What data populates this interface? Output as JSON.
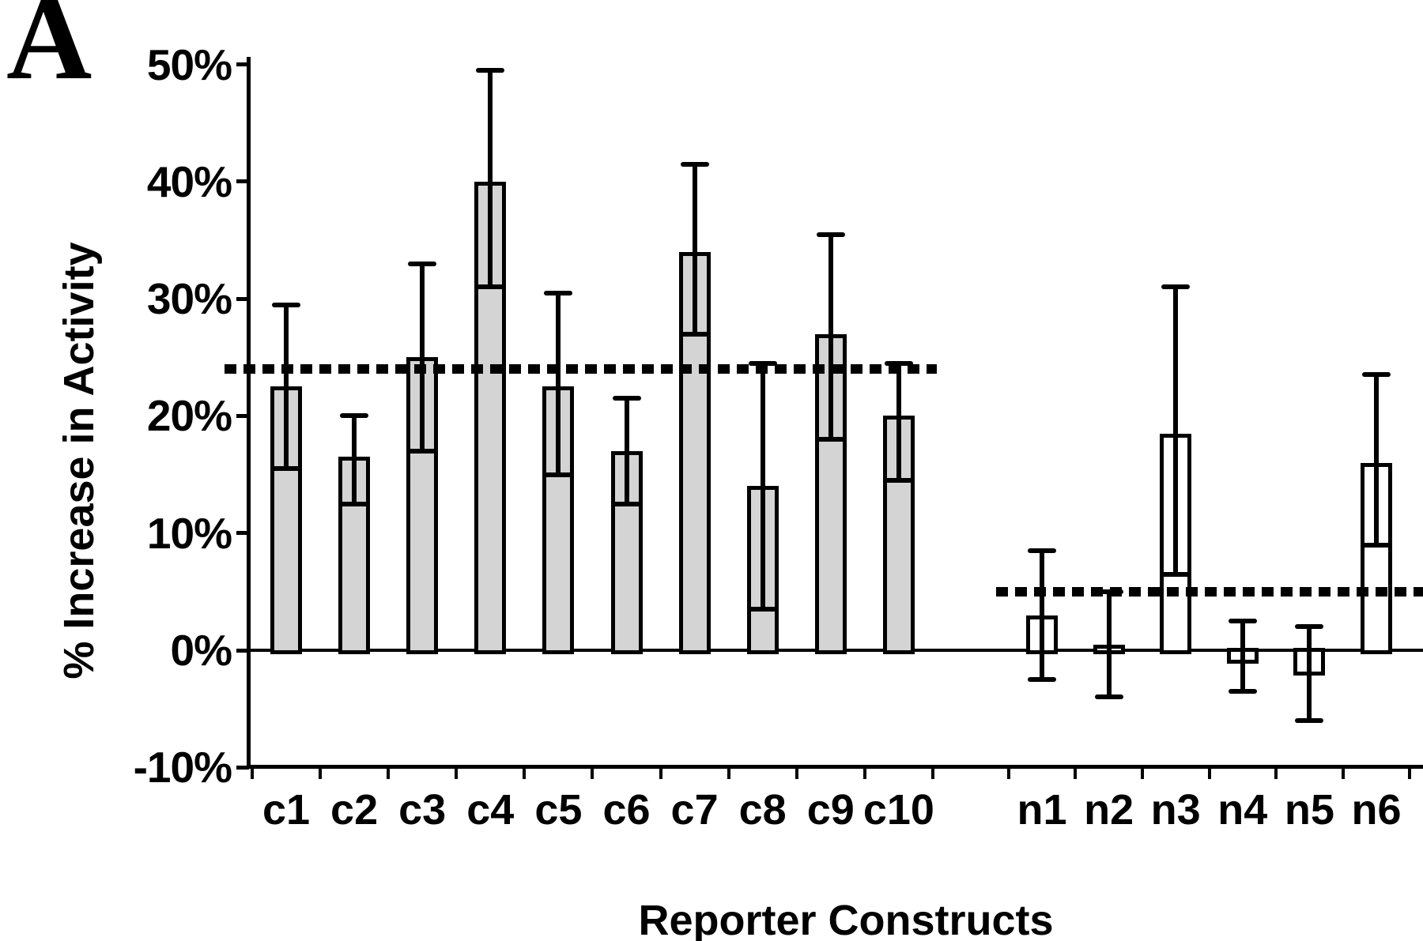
{
  "panel_label": "A",
  "y_axis": {
    "title": "% Increase in Activity",
    "ticks": [
      {
        "value": 50,
        "label": "50%"
      },
      {
        "value": 40,
        "label": "40%"
      },
      {
        "value": 30,
        "label": "30%"
      },
      {
        "value": 20,
        "label": "20%"
      },
      {
        "value": 10,
        "label": "10%"
      },
      {
        "value": 0,
        "label": "0%"
      },
      {
        "value": -10,
        "label": "-10%"
      }
    ]
  },
  "x_axis": {
    "title": "Reporter Constructs"
  },
  "chart_data": {
    "type": "bar",
    "title": "",
    "xlabel": "Reporter Constructs",
    "ylabel": "% Increase in Activity",
    "ylim": [
      -10,
      50
    ],
    "y_tick_step": 10,
    "grid": false,
    "error_bars": true,
    "groups": [
      {
        "name": "c-group",
        "bar_fill": "#d4d4d4",
        "reference_line_value": 24,
        "bars": [
          {
            "label": "c1",
            "value": 22.5,
            "err_low": 15.5,
            "err_high": 29.5
          },
          {
            "label": "c2",
            "value": 16.5,
            "err_low": 12.5,
            "err_high": 20
          },
          {
            "label": "c3",
            "value": 25,
            "err_low": 17,
            "err_high": 33
          },
          {
            "label": "c4",
            "value": 40,
            "err_low": 31,
            "err_high": 49.5
          },
          {
            "label": "c5",
            "value": 22.5,
            "err_low": 15,
            "err_high": 30.5
          },
          {
            "label": "c6",
            "value": 17,
            "err_low": 12.5,
            "err_high": 21.5
          },
          {
            "label": "c7",
            "value": 34,
            "err_low": 27,
            "err_high": 41.5
          },
          {
            "label": "c8",
            "value": 14,
            "err_low": 3.5,
            "err_high": 24.5
          },
          {
            "label": "c9",
            "value": 27,
            "err_low": 18,
            "err_high": 35.5
          },
          {
            "label": "c10",
            "value": 20,
            "err_low": 14.5,
            "err_high": 24.5
          }
        ]
      },
      {
        "name": "n-group",
        "bar_fill": "#ffffff",
        "reference_line_value": 5,
        "bars": [
          {
            "label": "n1",
            "value": 3,
            "err_low": -2.5,
            "err_high": 8.5
          },
          {
            "label": "n2",
            "value": 0.5,
            "err_low": -4,
            "err_high": 5
          },
          {
            "label": "n3",
            "value": 18.5,
            "err_low": 6.5,
            "err_high": 31
          },
          {
            "label": "n4",
            "value": -1,
            "err_low": -3.5,
            "err_high": 2.5
          },
          {
            "label": "n5",
            "value": -2,
            "err_low": -6,
            "err_high": 2
          },
          {
            "label": "n6",
            "value": 16,
            "err_low": 9,
            "err_high": 23.5
          }
        ]
      }
    ]
  }
}
